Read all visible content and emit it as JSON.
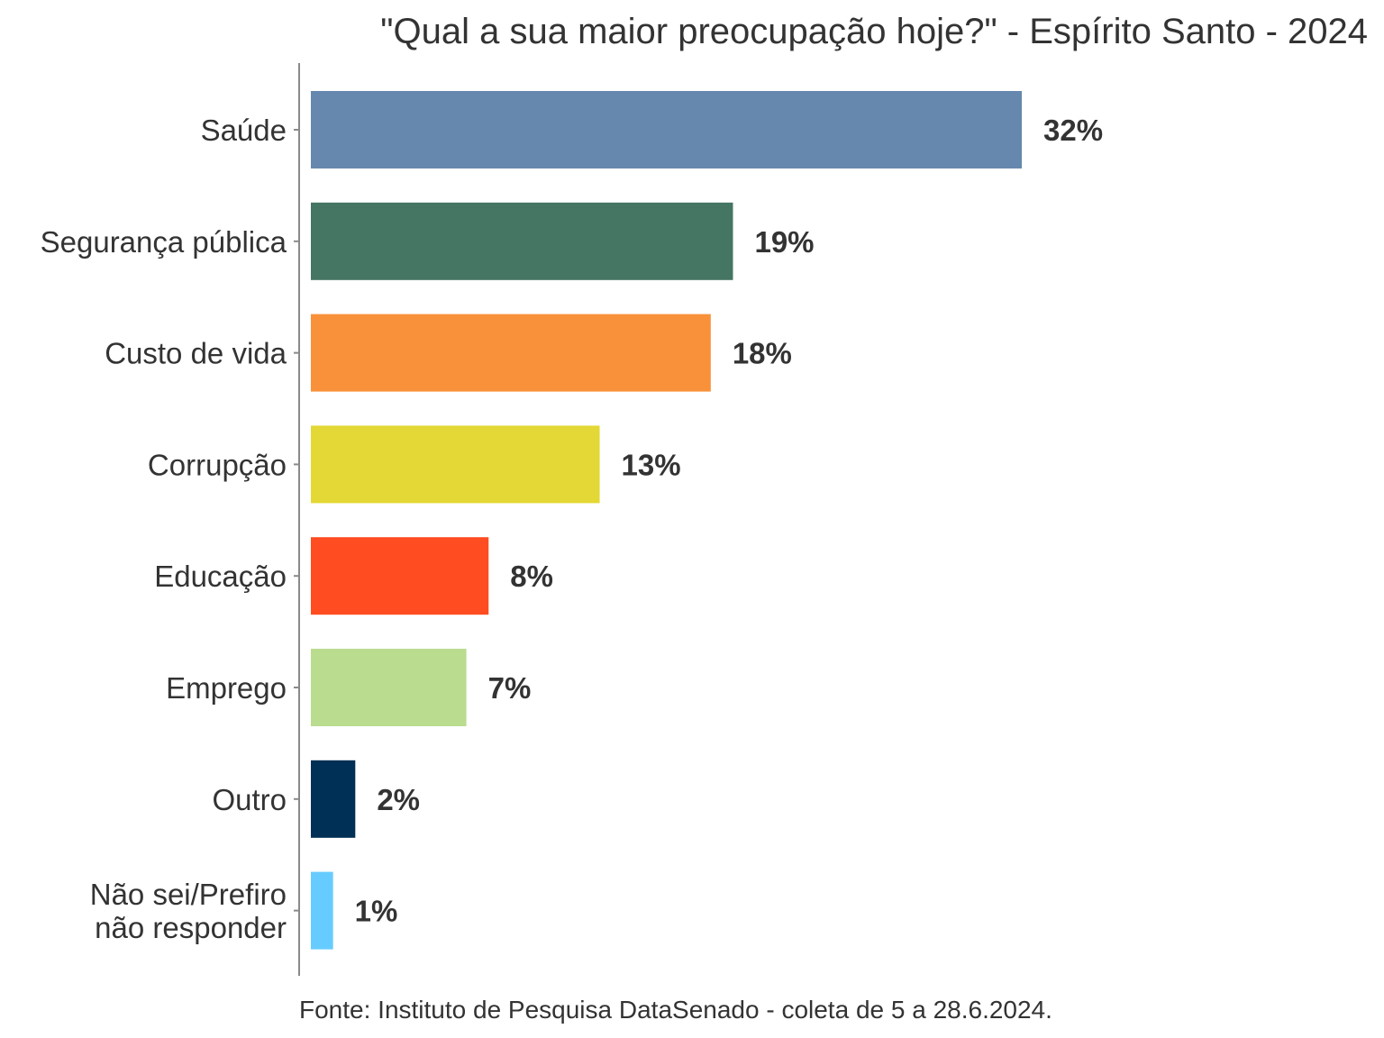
{
  "chart_data": {
    "type": "bar",
    "orientation": "horizontal",
    "title": "\"Qual a sua maior preocupação hoje?\" - Espírito Santo - 2024",
    "caption": "Fonte: Instituto de Pesquisa DataSenado - coleta de 5 a 28.6.2024.",
    "categories": [
      [
        "Saúde"
      ],
      [
        "Segurança pública"
      ],
      [
        "Custo de vida"
      ],
      [
        "Corrupção"
      ],
      [
        "Educação"
      ],
      [
        "Emprego"
      ],
      [
        "Outro"
      ],
      [
        "Não sei/Prefiro",
        "não responder"
      ]
    ],
    "values": [
      32,
      19,
      18,
      13,
      8,
      7,
      2,
      1
    ],
    "value_labels": [
      "32%",
      "19%",
      "18%",
      "13%",
      "8%",
      "7%",
      "2%",
      "1%"
    ],
    "colors": [
      "#6688AE",
      "#457563",
      "#F9913A",
      "#E3D835",
      "#FF4C20",
      "#BADC8F",
      "#003055",
      "#66CCFF"
    ],
    "xlim": [
      0,
      35
    ],
    "grid": false,
    "xaxis_visible": false,
    "legend": "none"
  }
}
